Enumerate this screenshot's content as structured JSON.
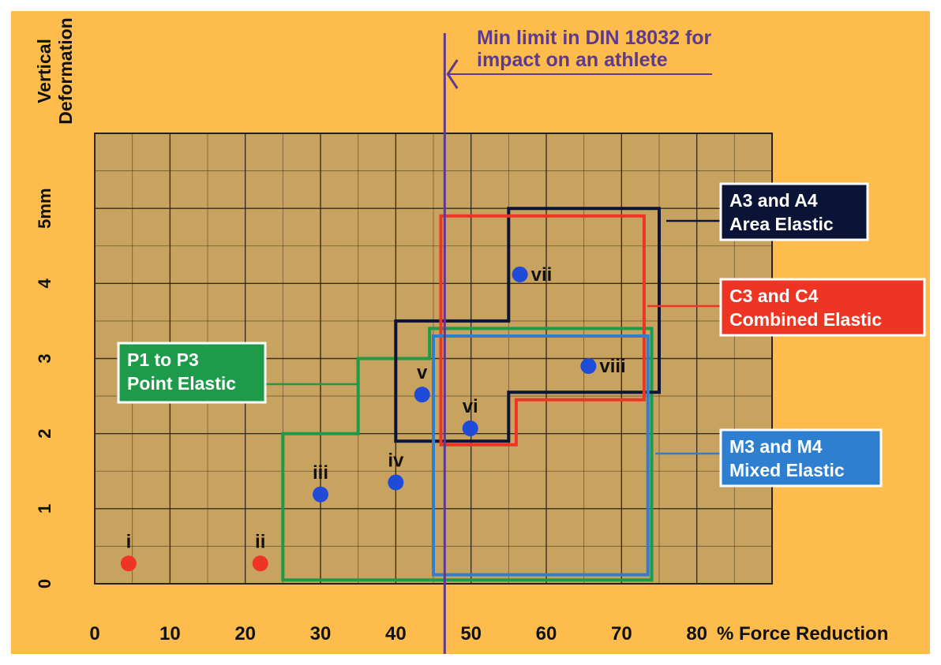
{
  "chart_data": {
    "type": "scatter",
    "x_label": "% Force Reduction",
    "y_label": [
      "Vertical",
      "Deformation"
    ],
    "x_ticks": [
      "0",
      "10",
      "20",
      "30",
      "40",
      "50",
      "60",
      "70",
      "80"
    ],
    "y_ticks": [
      "0",
      "1",
      "2",
      "3",
      "4",
      "5mm"
    ],
    "xlim": [
      0,
      90
    ],
    "ylim": [
      0,
      6
    ],
    "points": [
      {
        "label": "i",
        "x": 4.5,
        "y": 0.27,
        "color": "#ee3524"
      },
      {
        "label": "ii",
        "x": 22,
        "y": 0.27,
        "color": "#ee3524"
      },
      {
        "label": "iii",
        "x": 30,
        "y": 1.19,
        "color": "#1f4bd8"
      },
      {
        "label": "iv",
        "x": 40,
        "y": 1.35,
        "color": "#1f4bd8"
      },
      {
        "label": "v",
        "x": 43.5,
        "y": 2.52,
        "color": "#1f4bd8"
      },
      {
        "label": "vi",
        "x": 49.9,
        "y": 2.07,
        "color": "#1f4bd8"
      },
      {
        "label": "vii",
        "x": 56.5,
        "y": 4.12,
        "color": "#1f4bd8"
      },
      {
        "label": "viii",
        "x": 65.6,
        "y": 2.9,
        "color": "#1f4bd8"
      }
    ],
    "regions": [
      {
        "id": "point-elastic",
        "lines": [
          "P1 to P3",
          "Point Elastic"
        ],
        "color": "#1d9a4a",
        "polygon": [
          [
            25,
            0.05
          ],
          [
            25,
            2
          ],
          [
            35,
            2
          ],
          [
            35,
            3
          ],
          [
            44.5,
            3
          ],
          [
            44.5,
            3.4
          ],
          [
            74,
            3.4
          ],
          [
            74,
            0.05
          ]
        ]
      },
      {
        "id": "area-elastic",
        "lines": [
          "A3 and A4",
          "Area Elastic"
        ],
        "color": "#0a1436",
        "polygon": [
          [
            40,
            1.9
          ],
          [
            40,
            3.5
          ],
          [
            55,
            3.5
          ],
          [
            55,
            5
          ],
          [
            75,
            5
          ],
          [
            75,
            2.55
          ],
          [
            55,
            2.55
          ],
          [
            55,
            1.9
          ]
        ]
      },
      {
        "id": "combined-elastic",
        "lines": [
          "C3 and C4",
          "Combined Elastic"
        ],
        "color": "#ee3524",
        "polygon": [
          [
            46,
            1.85
          ],
          [
            46,
            4.9
          ],
          [
            73,
            4.9
          ],
          [
            73,
            2.45
          ],
          [
            56,
            2.45
          ],
          [
            56,
            1.85
          ]
        ]
      },
      {
        "id": "mixed-elastic",
        "lines": [
          "M3 and M4",
          "Mixed Elastic"
        ],
        "color": "#2f7fd1",
        "polygon": [
          [
            45,
            0.12
          ],
          [
            45,
            3.3
          ],
          [
            73.5,
            3.3
          ],
          [
            73.5,
            0.12
          ]
        ]
      }
    ],
    "threshold": {
      "x": 46.5,
      "lines": [
        "Min limit in DIN 18032 for",
        "impact on an athlete"
      ],
      "color": "#5d3a8d"
    },
    "plot_background": "#c8a35f",
    "grid": true
  }
}
